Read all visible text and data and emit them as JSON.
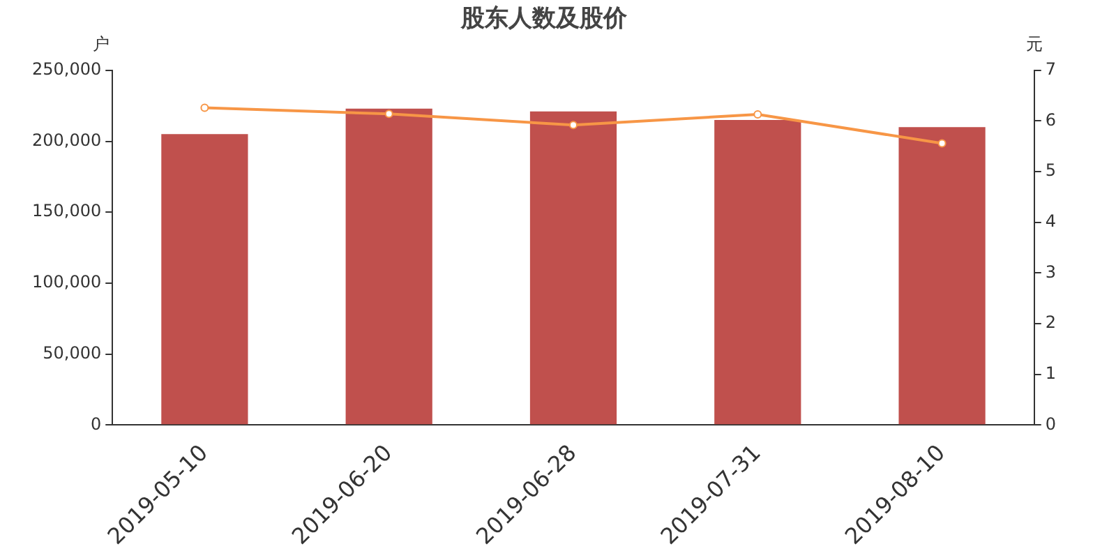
{
  "chart_data": {
    "type": "bar",
    "title": "股东人数及股价",
    "ylabel": "户",
    "y2label": "元",
    "categories": [
      "2019-05-10",
      "2019-06-20",
      "2019-06-28",
      "2019-07-31",
      "2019-08-10"
    ],
    "series": [
      {
        "color": "#c0504d",
        "values": [
          205000,
          223000,
          221000,
          215000,
          210000
        ]
      },
      {
        "type": "line",
        "axis": "y2",
        "color": "#f79646",
        "marker": "circle",
        "values": [
          6.26,
          6.14,
          5.92,
          6.13,
          5.56
        ]
      }
    ],
    "ylim": [
      0,
      250000
    ],
    "yticks": [
      {
        "value": 0,
        "label": "0"
      },
      {
        "value": 50000,
        "label": "50,000"
      },
      {
        "value": 100000,
        "label": "100,000"
      },
      {
        "value": 150000,
        "label": "150,000"
      },
      {
        "value": 200000,
        "label": "200,000"
      },
      {
        "value": 250000,
        "label": "250,000"
      }
    ],
    "y2lim": [
      0,
      7
    ],
    "y2ticks": [
      0,
      1,
      2,
      3,
      4,
      5,
      6,
      7
    ],
    "grid": false,
    "legend": false
  }
}
